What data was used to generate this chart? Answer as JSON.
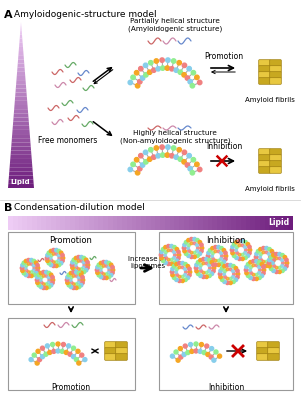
{
  "title_a": "Amyloidogenic-structure model",
  "title_b": "Condensation-dilution model",
  "label_a": "A",
  "label_b": "B",
  "lipid_label": "Lipid",
  "free_monomers": "Free monomers",
  "partially_helical": "Partially helical structure\n(Amyloidogenic structure)",
  "highly_helical": "Highly helical structure\n(Non-amyloidogenic structure)",
  "promotion": "Promotion",
  "inhibition": "Inhibition",
  "amyloid_fibrils": "Amyloid fibrils",
  "increase_liposomes": "Increase in\nliposomes",
  "bg_color": "#ffffff",
  "purple_dark": "#6B1A7A",
  "purple_mid": "#9B4DA0",
  "purple_light": "#E8D0F0",
  "col_orange": "#F5A623",
  "col_pink": "#F08080",
  "col_blue": "#87CEEB",
  "col_green": "#90EE90",
  "col_yellow1": "#E8C840",
  "col_yellow2": "#C8A820",
  "col_red": "#CC0000",
  "col_gray_tail": "#AAAAAA",
  "monomer_col1": "#CC6666",
  "monomer_col2": "#66AA66",
  "monomer_col3": "#6688CC",
  "monomer_col4": "#CC88AA"
}
